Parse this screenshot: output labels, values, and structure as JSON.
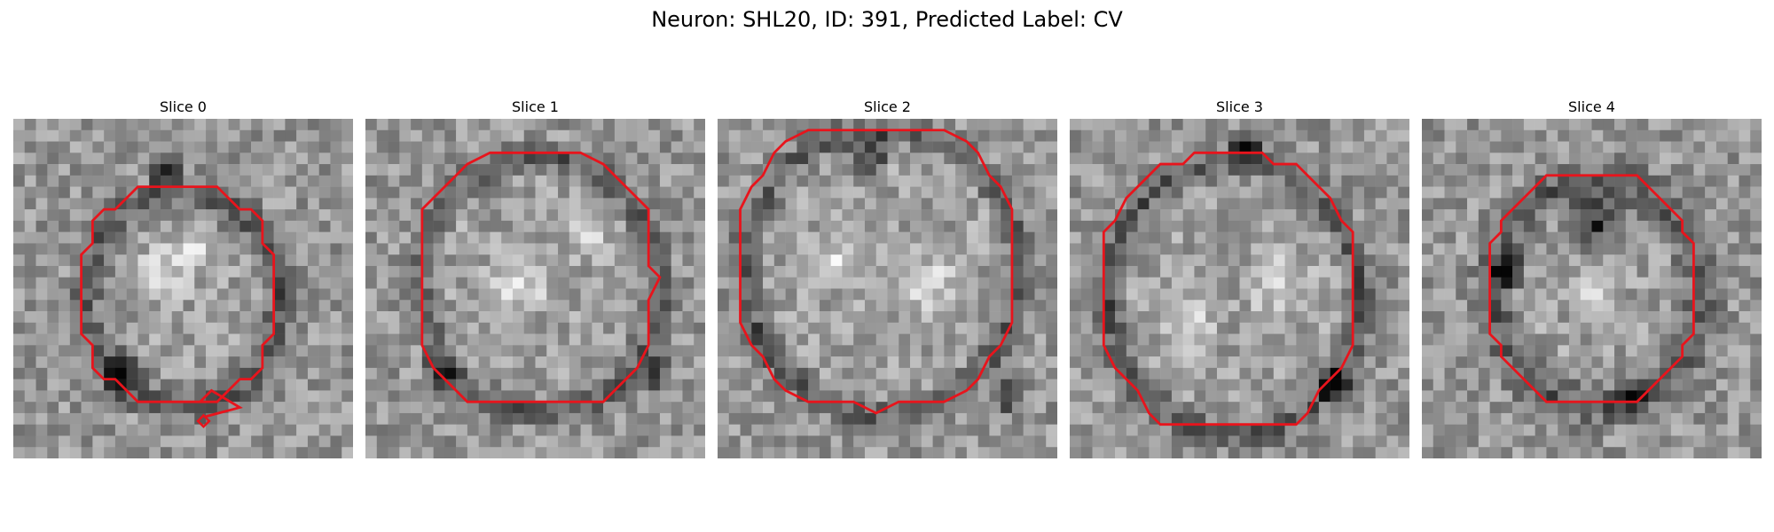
{
  "figure": {
    "title": "Neuron: SHL20, ID: 391, Predicted Label: CV",
    "contour_color": "#e8141c",
    "colormap": "gray"
  },
  "slices": [
    {
      "label": "Slice 0"
    },
    {
      "label": "Slice 1"
    },
    {
      "label": "Slice 2"
    },
    {
      "label": "Slice 3"
    },
    {
      "label": "Slice 4"
    }
  ]
}
